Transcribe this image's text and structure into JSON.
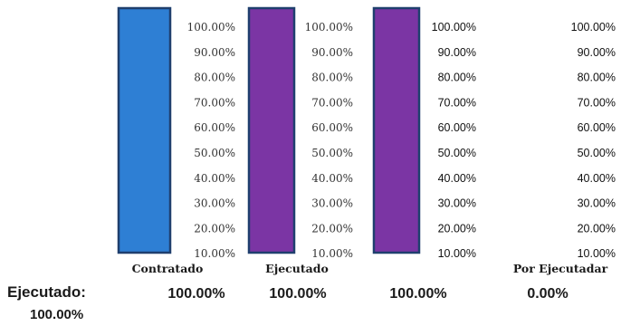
{
  "chart_data": {
    "type": "bar",
    "categories": [
      "Contratado",
      "Ejecutado",
      "",
      "Por Ejecutadar"
    ],
    "values": [
      100,
      100,
      100,
      0
    ],
    "value_labels": [
      "100.00%",
      "100.00%",
      "100.00%",
      "0.00%"
    ],
    "tick_labels": [
      "100.00%",
      "90.00%",
      "80.00%",
      "70.00%",
      "60.00%",
      "50.00%",
      "40.00%",
      "30.00%",
      "20.00%",
      "10.00%"
    ],
    "ylim": [
      0,
      100
    ],
    "colors": [
      "#2e7fd4",
      "#7b35a4",
      "#7b35a4",
      "#ffffff"
    ],
    "border_color": "#1f3f6e",
    "legend": "none",
    "grid": false
  },
  "summary": {
    "label": "Ejecutado:",
    "value": "100.00%"
  }
}
